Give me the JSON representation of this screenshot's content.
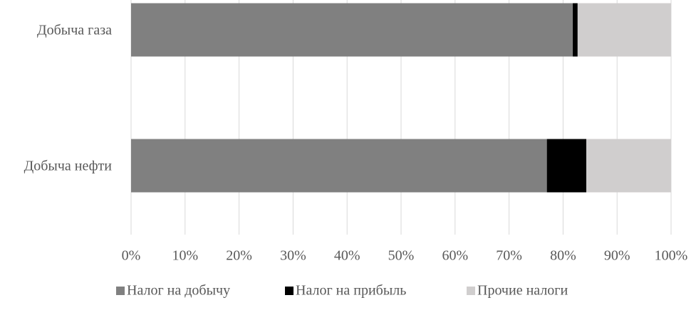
{
  "chart_data": {
    "type": "bar",
    "orientation": "horizontal",
    "stacked": true,
    "categories": [
      "Добыча газа",
      "Добыча нефти"
    ],
    "series": [
      {
        "name": "Налог на добычу",
        "color": "#808080",
        "values": [
          81.8,
          77
        ]
      },
      {
        "name": "Налог на прибыль",
        "color": "#000000",
        "values": [
          0.9,
          7.3
        ]
      },
      {
        "name": "Прочие налоги",
        "color": "#d0cece",
        "values": [
          17.3,
          15.7
        ]
      }
    ],
    "xlim": [
      0,
      100
    ],
    "xticks": [
      {
        "value": 0,
        "label": "0%"
      },
      {
        "value": 10,
        "label": "10%"
      },
      {
        "value": 20,
        "label": "20%"
      },
      {
        "value": 30,
        "label": "30%"
      },
      {
        "value": 40,
        "label": "40%"
      },
      {
        "value": 50,
        "label": "50%"
      },
      {
        "value": 60,
        "label": "60%"
      },
      {
        "value": 70,
        "label": "70%"
      },
      {
        "value": 80,
        "label": "80%"
      },
      {
        "value": 90,
        "label": "90%"
      },
      {
        "value": 100,
        "label": "100%"
      }
    ],
    "grid": true,
    "legend": "bottom"
  }
}
